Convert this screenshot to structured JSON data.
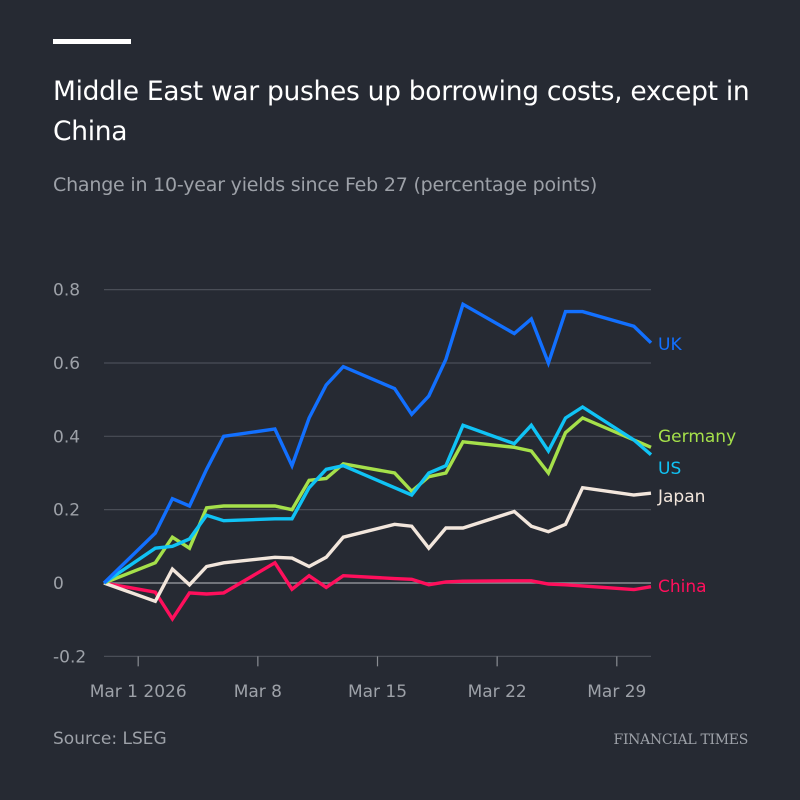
{
  "header": {
    "title": "Middle East war pushes up borrowing costs, except in China",
    "subtitle": "Change in 10-year yields since Feb 27 (percentage points)"
  },
  "footer": {
    "source": "Source: LSEG",
    "logo_text": "FINANCIAL TIMES"
  },
  "chart_data": {
    "type": "line",
    "title": "Middle East war pushes up borrowing costs, except in China",
    "subtitle": "Change in 10-year yields since Feb 27 (percentage points)",
    "ylim": [
      -0.2,
      0.8
    ],
    "y_ticks": [
      -0.2,
      0,
      0.2,
      0.4,
      0.6,
      0.8
    ],
    "y_tick_labels": [
      "-0.2",
      "0",
      "0.2",
      "0.4",
      "0.6",
      "0.8"
    ],
    "x_ticks": [
      "2026-03-01",
      "2026-03-08",
      "2026-03-15",
      "2026-03-22",
      "2026-03-29"
    ],
    "x_tick_labels": [
      "Mar 1 2026",
      "Mar 8",
      "Mar 15",
      "Mar 22",
      "Mar 29"
    ],
    "xlim": [
      "2026-02-27",
      "2026-03-31"
    ],
    "grid": true,
    "legend": "direct labels at line ends (right)",
    "x": [
      "2026-02-27",
      "2026-03-02",
      "2026-03-03",
      "2026-03-04",
      "2026-03-05",
      "2026-03-06",
      "2026-03-09",
      "2026-03-10",
      "2026-03-11",
      "2026-03-12",
      "2026-03-13",
      "2026-03-16",
      "2026-03-17",
      "2026-03-18",
      "2026-03-19",
      "2026-03-20",
      "2026-03-23",
      "2026-03-24",
      "2026-03-25",
      "2026-03-26",
      "2026-03-27",
      "2026-03-30",
      "2026-03-31"
    ],
    "series": [
      {
        "name": "UK",
        "color": "#1270ff",
        "values": [
          0,
          0.136,
          0.23,
          0.21,
          0.31,
          0.4,
          0.42,
          0.32,
          0.45,
          0.54,
          0.59,
          0.53,
          0.46,
          0.51,
          0.61,
          0.76,
          0.68,
          0.72,
          0.6,
          0.74,
          0.74,
          0.7,
          0.655
        ]
      },
      {
        "name": "Germany",
        "color": "#a5e04a",
        "values": [
          0,
          0.055,
          0.125,
          0.095,
          0.205,
          0.21,
          0.21,
          0.2,
          0.28,
          0.285,
          0.325,
          0.3,
          0.25,
          0.29,
          0.3,
          0.385,
          0.37,
          0.36,
          0.3,
          0.41,
          0.45,
          0.39,
          0.37
        ]
      },
      {
        "name": "US",
        "color": "#10c3f5",
        "values": [
          0,
          0.095,
          0.1,
          0.12,
          0.185,
          0.17,
          0.175,
          0.175,
          0.26,
          0.31,
          0.32,
          0.26,
          0.24,
          0.3,
          0.32,
          0.43,
          0.38,
          0.43,
          0.36,
          0.45,
          0.48,
          0.39,
          0.35
        ]
      },
      {
        "name": "Japan",
        "color": "#f2e6dc",
        "values": [
          0,
          -0.05,
          0.038,
          -0.005,
          0.045,
          0.055,
          0.07,
          0.068,
          0.045,
          0.07,
          0.125,
          0.16,
          0.155,
          0.095,
          0.15,
          0.15,
          0.195,
          0.155,
          0.14,
          0.16,
          0.26,
          0.24,
          0.245
        ]
      },
      {
        "name": "China",
        "color": "#ff0f5c",
        "values": [
          0,
          -0.025,
          -0.098,
          -0.027,
          -0.03,
          -0.027,
          0.055,
          -0.017,
          0.02,
          -0.012,
          0.02,
          0.012,
          0.01,
          -0.005,
          0.003,
          0.005,
          0.006,
          0.006,
          -0.003,
          -0.005,
          -0.008,
          -0.018,
          -0.01
        ]
      }
    ]
  }
}
